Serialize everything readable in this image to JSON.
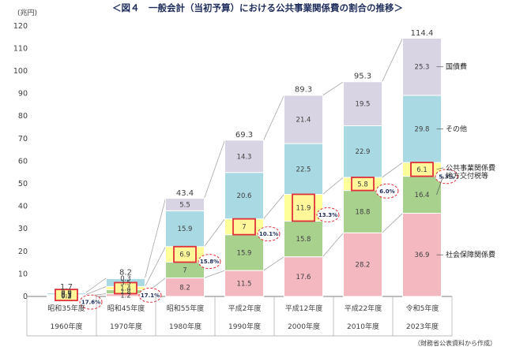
{
  "chart_data": {
    "type": "stacked-bar",
    "title": "＜図４　一般会計（当初予算）における公共事業関係費の割合の推移＞",
    "y_unit": "(兆円)",
    "ylim": [
      0,
      120
    ],
    "y_ticks": [
      "0",
      "10",
      "20",
      "30",
      "40",
      "50",
      "60",
      "70",
      "80",
      "90",
      "100",
      "110",
      "120"
    ],
    "categories": [
      "昭和35年度",
      "昭和45年度",
      "昭和55年度",
      "平成2年度",
      "平成12年度",
      "平成22年度",
      "令和5年度"
    ],
    "categories_sub": [
      "1960年度",
      "1970年度",
      "1980年度",
      "1990年度",
      "2000年度",
      "2010年度",
      "2023年度"
    ],
    "series": [
      {
        "name": "社会保障関係費",
        "color": "#f4b8c1",
        "values": [
          0.2,
          1.2,
          8.2,
          11.5,
          17.6,
          28.2,
          36.9
        ],
        "labels": [
          "0.2",
          "1.2",
          "8.2",
          "11.5",
          "17.6",
          "28.2",
          "36.9"
        ]
      },
      {
        "name": "地方交付税等",
        "color": "#a9d18e",
        "values": [
          0.3,
          1.8,
          7,
          15.9,
          15.8,
          18.8,
          16.4
        ],
        "labels": [
          "0.3",
          "1.8",
          "7",
          "15.9",
          "15.8",
          "18.8",
          "16.4"
        ]
      },
      {
        "name": "公共事業関係費",
        "color": "#ffff99",
        "values": [
          0.3,
          1.4,
          6.9,
          7,
          11.9,
          5.8,
          6.1
        ],
        "labels": [
          "0.3",
          "1.4",
          "6.9",
          "7",
          "11.9",
          "5.8",
          "6.1"
        ]
      },
      {
        "name": "その他",
        "color": "#a9d9e3",
        "values": [
          0.9,
          3.5,
          15.9,
          20.6,
          22.5,
          22.9,
          29.8
        ],
        "labels": [
          "0.9",
          "3.5",
          "15.9",
          "20.6",
          "22.5",
          "22.9",
          "29.8"
        ]
      },
      {
        "name": "国債費",
        "color": "#d9d4e4",
        "values": [
          0.0,
          0.3,
          5.5,
          14.3,
          21.4,
          19.5,
          25.3
        ],
        "labels": [
          "0.0",
          "0.3",
          "5.5",
          "14.3",
          "21.4",
          "19.5",
          "25.3"
        ]
      }
    ],
    "totals": [
      "1.7",
      "8.2",
      "43.4",
      "69.3",
      "89.3",
      "95.3",
      "114.4"
    ],
    "total_values": [
      1.7,
      8.2,
      43.4,
      69.3,
      89.3,
      95.3,
      114.4
    ],
    "public_works_share": [
      "17.6%",
      "17.1%",
      "15.8%",
      "10.1%",
      "13.3%",
      "6.0%",
      "5.3%"
    ],
    "source": "（財務省公表資料から作成）",
    "legend_placement": "right",
    "grid": false
  }
}
